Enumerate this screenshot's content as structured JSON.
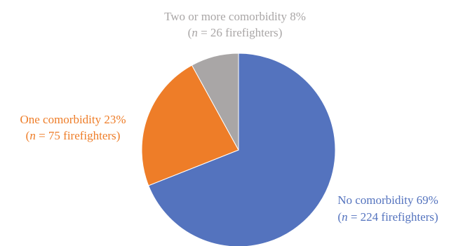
{
  "chart_data": {
    "type": "pie",
    "slices": [
      {
        "name": "No comorbidity",
        "percent": 69,
        "n": 224,
        "color": "#5473BE",
        "label_line1": "No comorbidity 69%",
        "label_n_value": "224",
        "label_n_unit": "firefighters"
      },
      {
        "name": "One comorbidity",
        "percent": 23,
        "n": 75,
        "color": "#EE7D28",
        "label_line1": "One comorbidity 23%",
        "label_n_value": "75",
        "label_n_unit": "firefighters"
      },
      {
        "name": "Two or more comorbidity",
        "percent": 8,
        "n": 26,
        "color": "#A9A6A6",
        "label_line1": "Two or more comorbidity 8%",
        "label_n_value": "26",
        "label_n_unit": "firefighters"
      }
    ],
    "start_angle_deg": 0,
    "direction": "clockwise",
    "label_n_var": "n",
    "label_eq": "="
  }
}
